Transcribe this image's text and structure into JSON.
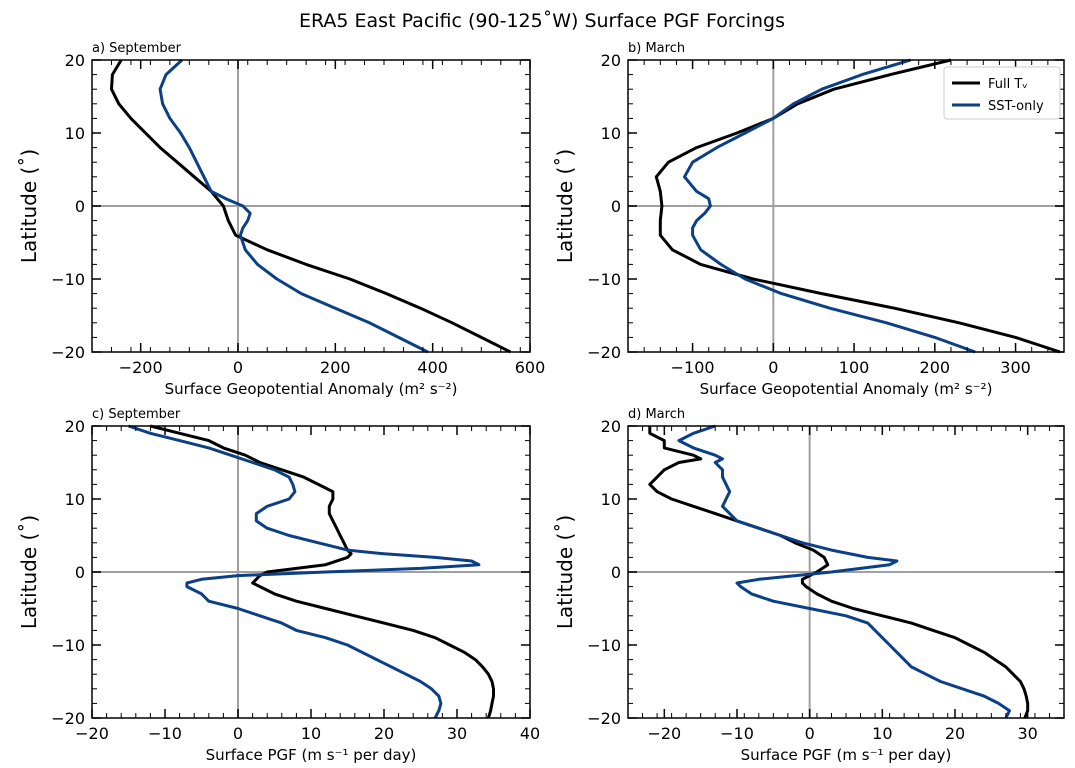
{
  "figure": {
    "title": "ERA5 East Pacific (90-125˚W) Surface PGF Forcings"
  },
  "colors": {
    "full": "#000000",
    "sst": "#0b3f86",
    "zero": "#a0a0a0"
  },
  "chart_data": [
    {
      "id": "a",
      "type": "line",
      "title": "a) September",
      "xlabel": "Surface Geopotential Anomaly (m² s⁻²)",
      "ylabel": "Latitude (˚)",
      "xlim": [
        -300,
        600
      ],
      "ylim": [
        -20,
        20
      ],
      "xticks": [
        -200,
        0,
        200,
        400,
        600
      ],
      "yticks": [
        -20,
        -10,
        0,
        10,
        20
      ],
      "xtick_labels": [
        "−200",
        "0",
        "200",
        "400",
        "600"
      ],
      "ytick_labels": [
        "−20",
        "−10",
        "0",
        "10",
        "20"
      ],
      "legend": null,
      "series": [
        {
          "name": "Full Tv",
          "color": "full",
          "y": [
            20,
            18,
            16,
            14,
            12,
            10,
            8,
            6,
            4,
            2,
            0,
            -2,
            -4,
            -6,
            -8,
            -10,
            -12,
            -14,
            -16,
            -18,
            -20
          ],
          "x": [
            -240,
            -258,
            -260,
            -245,
            -220,
            -190,
            -160,
            -125,
            -90,
            -55,
            -30,
            -20,
            -5,
            60,
            140,
            230,
            305,
            375,
            440,
            500,
            560
          ]
        },
        {
          "name": "SST-only",
          "color": "sst",
          "y": [
            20,
            18,
            16,
            14,
            12,
            10,
            8,
            6,
            4,
            2,
            1,
            0,
            -1,
            -2,
            -3,
            -4,
            -6,
            -8,
            -10,
            -12,
            -14,
            -16,
            -18,
            -20
          ],
          "x": [
            -115,
            -148,
            -160,
            -155,
            -140,
            -118,
            -100,
            -85,
            -70,
            -55,
            -25,
            10,
            25,
            20,
            10,
            5,
            15,
            40,
            80,
            130,
            200,
            270,
            330,
            390
          ]
        }
      ]
    },
    {
      "id": "b",
      "type": "line",
      "title": "b) March",
      "xlabel": "Surface Geopotential Anomaly (m² s⁻²)",
      "ylabel": "Latitude (˚)",
      "xlim": [
        -180,
        360
      ],
      "ylim": [
        -20,
        20
      ],
      "xticks": [
        -100,
        0,
        100,
        200,
        300
      ],
      "yticks": [
        -20,
        -10,
        0,
        10,
        20
      ],
      "xtick_labels": [
        "−100",
        "0",
        "100",
        "200",
        "300"
      ],
      "ytick_labels": [
        "−20",
        "−10",
        "0",
        "10",
        "20"
      ],
      "legend": {
        "position": "top-right"
      },
      "series": [
        {
          "name": "Full Tᵥ",
          "color": "full",
          "y": [
            20,
            18,
            16,
            14,
            12,
            10,
            8,
            6,
            4,
            2,
            0,
            -2,
            -4,
            -6,
            -8,
            -10,
            -12,
            -14,
            -16,
            -18,
            -20
          ],
          "x": [
            220,
            145,
            75,
            30,
            0,
            -45,
            -95,
            -130,
            -145,
            -140,
            -138,
            -140,
            -140,
            -125,
            -90,
            -25,
            60,
            150,
            230,
            300,
            355
          ]
        },
        {
          "name": "SST-only",
          "color": "sst",
          "y": [
            20,
            18,
            16,
            14,
            12,
            10,
            8,
            6,
            4,
            2,
            1,
            0,
            -1,
            -2,
            -3,
            -4,
            -6,
            -8,
            -10,
            -12,
            -14,
            -16,
            -18,
            -20
          ],
          "x": [
            170,
            110,
            60,
            25,
            0,
            -35,
            -70,
            -100,
            -110,
            -95,
            -80,
            -78,
            -85,
            -95,
            -100,
            -100,
            -90,
            -65,
            -35,
            10,
            70,
            140,
            200,
            250
          ]
        }
      ]
    },
    {
      "id": "c",
      "type": "line",
      "title": "c) September",
      "xlabel": "Surface PGF (m s⁻¹ per day)",
      "ylabel": "Latitude (˚)",
      "xlim": [
        -20,
        40
      ],
      "ylim": [
        -20,
        20
      ],
      "xticks": [
        -20,
        -10,
        0,
        10,
        20,
        30,
        40
      ],
      "yticks": [
        -20,
        -10,
        0,
        10,
        20
      ],
      "xtick_labels": [
        "−20",
        "−10",
        "0",
        "10",
        "20",
        "30",
        "40"
      ],
      "ytick_labels": [
        "−20",
        "−10",
        "0",
        "10",
        "20"
      ],
      "legend": null,
      "series": [
        {
          "name": "Full Tv",
          "color": "full",
          "y": [
            20,
            19,
            18,
            17,
            16,
            15,
            14,
            13,
            12,
            11,
            10,
            9,
            8,
            7,
            6,
            5,
            4,
            3,
            2.5,
            2,
            1,
            0.5,
            0,
            -0.5,
            -1,
            -1.5,
            -2,
            -3,
            -4,
            -5,
            -6,
            -7,
            -8,
            -9,
            -10,
            -11,
            -12,
            -13,
            -14,
            -15,
            -16,
            -17,
            -18,
            -19,
            -20
          ],
          "x": [
            -12,
            -8,
            -4,
            -2,
            1,
            3,
            6,
            9,
            11,
            13,
            13,
            12.5,
            12.5,
            13,
            13.5,
            14,
            14.5,
            15,
            15.5,
            15,
            12,
            8,
            4,
            3,
            2.5,
            2,
            3,
            5,
            8,
            12,
            16,
            20,
            24,
            27,
            29,
            31,
            32.5,
            33.5,
            34.3,
            34.8,
            35,
            35,
            34.8,
            34.6,
            34.3
          ]
        },
        {
          "name": "SST-only",
          "color": "sst",
          "y": [
            20,
            19,
            18,
            17,
            16,
            15,
            14,
            13,
            12,
            11,
            10,
            9,
            8,
            7,
            6,
            5,
            4,
            3,
            2.5,
            2,
            1.5,
            1,
            0.5,
            0,
            -0.5,
            -1,
            -1.5,
            -2,
            -3,
            -4,
            -5,
            -6,
            -7,
            -8,
            -9,
            -10,
            -11,
            -12,
            -13,
            -14,
            -15,
            -16,
            -17,
            -18,
            -19,
            -20
          ],
          "x": [
            -15,
            -12,
            -8,
            -4,
            -1,
            2,
            5,
            7,
            7.5,
            7.8,
            7,
            4,
            2.5,
            2.5,
            4,
            7,
            11,
            15,
            20,
            27,
            32,
            33,
            25,
            12,
            0,
            -5,
            -7,
            -7,
            -5,
            -4,
            0,
            3,
            6,
            8,
            12,
            15,
            17,
            19,
            21,
            23,
            25,
            26.5,
            27.5,
            27.8,
            27.5,
            27
          ]
        }
      ]
    },
    {
      "id": "d",
      "type": "line",
      "title": "d) March",
      "xlabel": "Surface PGF (m s⁻¹ per day)",
      "ylabel": "Latitude (˚)",
      "xlim": [
        -25,
        35
      ],
      "ylim": [
        -20,
        20
      ],
      "xticks": [
        -20,
        -10,
        0,
        10,
        20,
        30
      ],
      "yticks": [
        -20,
        -10,
        0,
        10,
        20
      ],
      "xtick_labels": [
        "−20",
        "−10",
        "0",
        "10",
        "20",
        "30"
      ],
      "ytick_labels": [
        "−20",
        "−10",
        "0",
        "10",
        "20"
      ],
      "legend": null,
      "series": [
        {
          "name": "Full Tv",
          "color": "full",
          "y": [
            20,
            19,
            18,
            17,
            16,
            15.5,
            15,
            14,
            13,
            12,
            11,
            10,
            9,
            8,
            7,
            6,
            5,
            4,
            3,
            2,
            1,
            0,
            -1,
            -1.5,
            -2,
            -3,
            -4,
            -5,
            -6,
            -7,
            -8,
            -9,
            -10,
            -11,
            -12,
            -13,
            -14,
            -15,
            -16,
            -17,
            -18,
            -19,
            -20
          ],
          "x": [
            -22,
            -22,
            -20,
            -20,
            -16,
            -15,
            -18,
            -20,
            -21,
            -22,
            -21,
            -19,
            -16,
            -13,
            -10,
            -7,
            -4,
            -2,
            0.5,
            2,
            2.5,
            1,
            -1,
            -1,
            -0.5,
            1,
            3,
            6,
            10,
            14,
            17,
            20,
            22,
            24,
            25.5,
            27,
            28,
            29,
            29.5,
            29.8,
            30,
            30,
            29.6
          ]
        },
        {
          "name": "SST-only",
          "color": "sst",
          "y": [
            20,
            19,
            18,
            17,
            16,
            15.5,
            15,
            14,
            13,
            12,
            11,
            10,
            9,
            8,
            7,
            6,
            5,
            4,
            3,
            2,
            1.5,
            1,
            0,
            -1,
            -1.5,
            -2,
            -3,
            -4,
            -5,
            -6,
            -7,
            -8,
            -9,
            -10,
            -11,
            -12,
            -13,
            -14,
            -15,
            -16,
            -17,
            -18,
            -19,
            -20
          ],
          "x": [
            -13,
            -16,
            -18,
            -16,
            -13,
            -12,
            -13,
            -12,
            -12,
            -11.5,
            -11,
            -11.5,
            -12,
            -11,
            -10,
            -7,
            -4,
            -1,
            3,
            8,
            12,
            11,
            3,
            -7,
            -10,
            -9.5,
            -8,
            -5,
            0,
            5,
            8,
            9,
            10,
            11,
            12,
            13,
            14,
            16,
            18,
            21,
            24,
            26,
            27.5,
            27
          ]
        }
      ]
    }
  ]
}
